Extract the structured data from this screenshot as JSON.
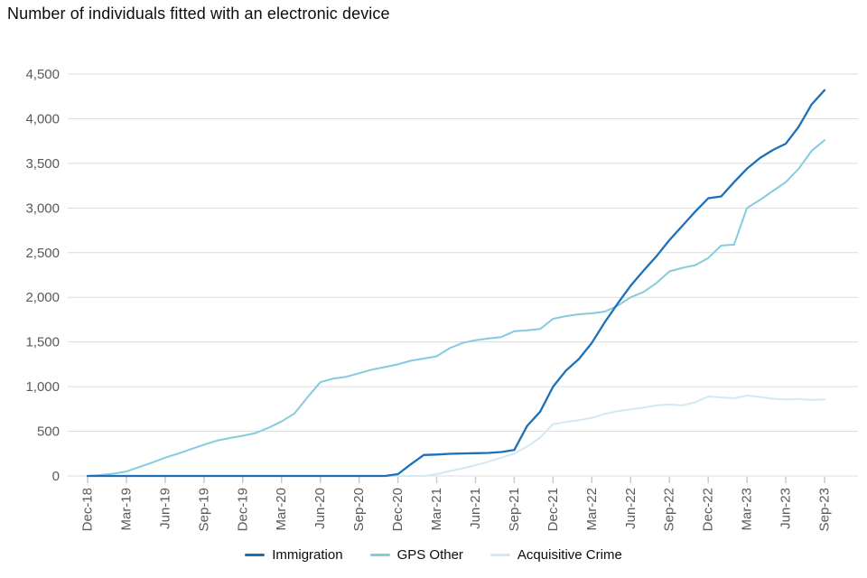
{
  "title": "Number of individuals fitted with an electronic device",
  "chart_data": {
    "type": "line",
    "title": "Number of individuals fitted with an electronic device",
    "xlabel": "",
    "ylabel": "",
    "ylim": [
      0,
      4500
    ],
    "ytick_step": 500,
    "grid": "horizontal",
    "legend_position": "bottom",
    "x_tick_every": 3,
    "x_tick_labels": [
      "Dec-18",
      "Mar-19",
      "Jun-19",
      "Sep-19",
      "Dec-19",
      "Mar-20",
      "Jun-20",
      "Sep-20",
      "Dec-20",
      "Mar-21",
      "Jun-21",
      "Sep-21",
      "Dec-21",
      "Mar-22",
      "Jun-22",
      "Sep-22",
      "Dec-22",
      "Mar-23",
      "Jun-23",
      "Sep-23"
    ],
    "x": [
      "Dec-18",
      "Jan-19",
      "Feb-19",
      "Mar-19",
      "Apr-19",
      "May-19",
      "Jun-19",
      "Jul-19",
      "Aug-19",
      "Sep-19",
      "Oct-19",
      "Nov-19",
      "Dec-19",
      "Jan-20",
      "Feb-20",
      "Mar-20",
      "Apr-20",
      "May-20",
      "Jun-20",
      "Jul-20",
      "Aug-20",
      "Sep-20",
      "Oct-20",
      "Nov-20",
      "Dec-20",
      "Jan-21",
      "Feb-21",
      "Mar-21",
      "Apr-21",
      "May-21",
      "Jun-21",
      "Jul-21",
      "Aug-21",
      "Sep-21",
      "Oct-21",
      "Nov-21",
      "Dec-21",
      "Jan-22",
      "Feb-22",
      "Mar-22",
      "Apr-22",
      "May-22",
      "Jun-22",
      "Jul-22",
      "Aug-22",
      "Sep-22",
      "Oct-22",
      "Nov-22",
      "Dec-22",
      "Jan-23",
      "Feb-23",
      "Mar-23",
      "Apr-23",
      "May-23",
      "Jun-23",
      "Jul-23",
      "Aug-23",
      "Sep-23"
    ],
    "series": [
      {
        "name": "Immigration",
        "color": "#1d70b8",
        "stroke_width": 2.3,
        "values": [
          0,
          0,
          0,
          0,
          0,
          0,
          0,
          0,
          0,
          0,
          0,
          0,
          0,
          0,
          0,
          0,
          0,
          0,
          0,
          0,
          0,
          0,
          0,
          0,
          20,
          130,
          235,
          240,
          248,
          252,
          255,
          258,
          268,
          290,
          560,
          720,
          1000,
          1180,
          1310,
          1490,
          1720,
          1930,
          2130,
          2300,
          2460,
          2640,
          2800,
          2960,
          3110,
          3130,
          3290,
          3440,
          3560,
          3650,
          3720,
          3910,
          4160,
          4320
        ]
      },
      {
        "name": "GPS Other",
        "color": "#85cbdf",
        "stroke_width": 2,
        "values": [
          0,
          10,
          25,
          50,
          100,
          150,
          205,
          250,
          300,
          350,
          395,
          425,
          450,
          480,
          540,
          610,
          700,
          880,
          1050,
          1090,
          1110,
          1150,
          1190,
          1220,
          1250,
          1290,
          1315,
          1340,
          1430,
          1490,
          1520,
          1540,
          1555,
          1620,
          1630,
          1645,
          1760,
          1790,
          1810,
          1820,
          1840,
          1905,
          2000,
          2060,
          2160,
          2290,
          2330,
          2360,
          2440,
          2580,
          2590,
          3000,
          3090,
          3190,
          3290,
          3440,
          3640,
          3760
        ]
      },
      {
        "name": "Acquisitive Crime",
        "color": "#d2e9f2",
        "stroke_width": 2,
        "values": [
          0,
          0,
          0,
          0,
          0,
          0,
          0,
          0,
          0,
          0,
          0,
          0,
          0,
          0,
          0,
          0,
          0,
          0,
          0,
          0,
          0,
          0,
          0,
          0,
          0,
          0,
          0,
          20,
          55,
          85,
          120,
          160,
          205,
          250,
          330,
          430,
          580,
          605,
          625,
          650,
          695,
          725,
          745,
          765,
          790,
          800,
          790,
          825,
          890,
          880,
          870,
          900,
          885,
          865,
          855,
          862,
          850,
          855
        ]
      }
    ],
    "colors": {
      "grid": "#dcdcdc",
      "tick": "#c9c9c9",
      "axis_text": "#595959",
      "title_text": "#0b0c0c"
    }
  }
}
